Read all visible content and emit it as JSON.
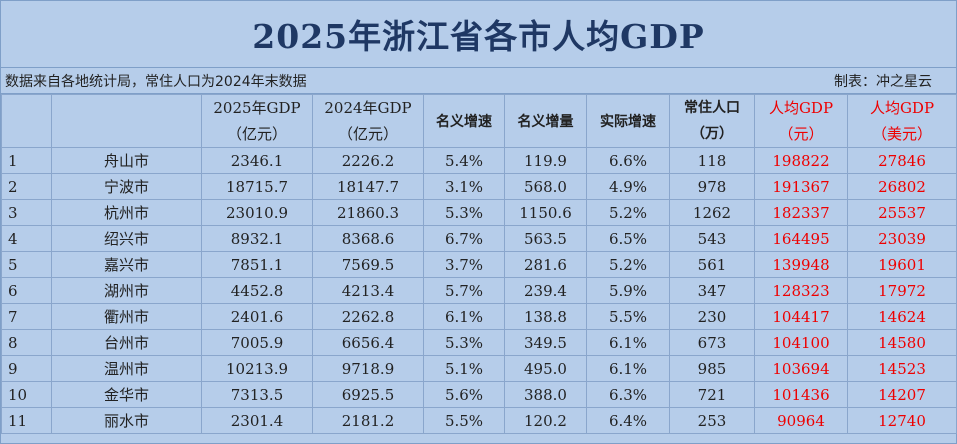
{
  "title": "2025年浙江省各市人均GDP",
  "source_note": "数据来自各地统计局，常住人口为2024年末数据",
  "author_note": "制表：冲之星云",
  "headers": {
    "gdp2025": [
      "2025年GDP",
      "（亿元）"
    ],
    "gdp2024": [
      "2024年GDP",
      "（亿元）"
    ],
    "nominal_growth": "名义增速",
    "nominal_increase": "名义增量",
    "real_growth": "实际增速",
    "population": [
      "常住人口",
      "（万）"
    ],
    "per_capita_cny": [
      "人均GDP",
      "（元）"
    ],
    "per_capita_usd": [
      "人均GDP",
      "（美元）"
    ]
  },
  "rows": [
    [
      "1",
      "舟山市",
      "2346.1",
      "2226.2",
      "5.4%",
      "119.9",
      "6.6%",
      "118",
      "198822",
      "27846"
    ],
    [
      "2",
      "宁波市",
      "18715.7",
      "18147.7",
      "3.1%",
      "568.0",
      "4.9%",
      "978",
      "191367",
      "26802"
    ],
    [
      "3",
      "杭州市",
      "23010.9",
      "21860.3",
      "5.3%",
      "1150.6",
      "5.2%",
      "1262",
      "182337",
      "25537"
    ],
    [
      "4",
      "绍兴市",
      "8932.1",
      "8368.6",
      "6.7%",
      "563.5",
      "6.5%",
      "543",
      "164495",
      "23039"
    ],
    [
      "5",
      "嘉兴市",
      "7851.1",
      "7569.5",
      "3.7%",
      "281.6",
      "5.2%",
      "561",
      "139948",
      "19601"
    ],
    [
      "6",
      "湖州市",
      "4452.8",
      "4213.4",
      "5.7%",
      "239.4",
      "5.9%",
      "347",
      "128323",
      "17972"
    ],
    [
      "7",
      "衢州市",
      "2401.6",
      "2262.8",
      "6.1%",
      "138.8",
      "5.5%",
      "230",
      "104417",
      "14624"
    ],
    [
      "8",
      "台州市",
      "7005.9",
      "6656.4",
      "5.3%",
      "349.5",
      "6.1%",
      "673",
      "104100",
      "14580"
    ],
    [
      "9",
      "温州市",
      "10213.9",
      "9718.9",
      "5.1%",
      "495.0",
      "6.1%",
      "985",
      "103694",
      "14523"
    ],
    [
      "10",
      "金华市",
      "7313.5",
      "6925.5",
      "5.6%",
      "388.0",
      "6.3%",
      "721",
      "101436",
      "14207"
    ],
    [
      "11",
      "丽水市",
      "2301.4",
      "2181.2",
      "5.5%",
      "120.2",
      "6.4%",
      "253",
      "90964",
      "12740"
    ]
  ],
  "colors": {
    "background": "#b6cdea",
    "title": "#1f3864",
    "highlight": "#ee0000",
    "grid": "#8aa6cc"
  }
}
